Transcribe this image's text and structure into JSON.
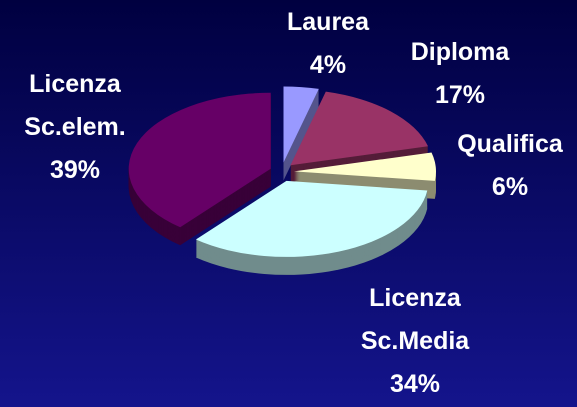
{
  "chart_data": {
    "type": "pie",
    "categories": [
      "Laurea",
      "Diploma",
      "Qualifica",
      "Licenza Sc.Media",
      "Licenza Sc.elem."
    ],
    "values": [
      4,
      17,
      6,
      34,
      39
    ],
    "value_labels": [
      "4%",
      "17%",
      "6%",
      "34%",
      "39%"
    ],
    "colors": [
      "#9999ff",
      "#993366",
      "#ffffcc",
      "#ccffff",
      "#660066"
    ]
  }
}
